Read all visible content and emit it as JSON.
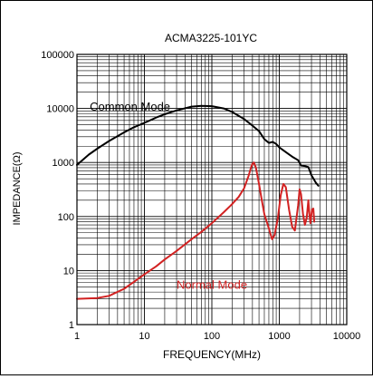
{
  "chart_data": {
    "type": "line",
    "title": "ACMA3225-101YC",
    "xlabel": "FREQUENCY(MHz)",
    "ylabel": "IMPEDANCE(Ω)",
    "x_scale": "log",
    "y_scale": "log",
    "xlim": [
      1,
      10000
    ],
    "ylim": [
      1,
      100000
    ],
    "grid": true,
    "x_ticks": [
      {
        "value": 1,
        "label": "1"
      },
      {
        "value": 10,
        "label": "10"
      },
      {
        "value": 100,
        "label": "100"
      },
      {
        "value": 1000,
        "label": "1000"
      },
      {
        "value": 10000,
        "label": "10000"
      }
    ],
    "y_ticks": [
      {
        "value": 1,
        "label": "1"
      },
      {
        "value": 10,
        "label": "10"
      },
      {
        "value": 100,
        "label": "100"
      },
      {
        "value": 1000,
        "label": "1000"
      },
      {
        "value": 10000,
        "label": "10000"
      },
      {
        "value": 100000,
        "label": "100000"
      }
    ],
    "series": [
      {
        "name": "Common Mode",
        "color": "#000000",
        "label_at": [
          1.55,
          11000
        ],
        "points": [
          [
            1,
            900
          ],
          [
            1.5,
            1400
          ],
          [
            2,
            1800
          ],
          [
            3,
            2500
          ],
          [
            5,
            3600
          ],
          [
            7,
            4500
          ],
          [
            10,
            5400
          ],
          [
            15,
            6800
          ],
          [
            20,
            7800
          ],
          [
            30,
            9200
          ],
          [
            50,
            10800
          ],
          [
            70,
            11200
          ],
          [
            100,
            11000
          ],
          [
            150,
            10000
          ],
          [
            200,
            8600
          ],
          [
            300,
            6400
          ],
          [
            400,
            4800
          ],
          [
            500,
            3800
          ],
          [
            600,
            2700
          ],
          [
            700,
            2300
          ],
          [
            800,
            2400
          ],
          [
            900,
            2200
          ],
          [
            1000,
            1900
          ],
          [
            1300,
            1500
          ],
          [
            1600,
            1250
          ],
          [
            1900,
            1100
          ],
          [
            2100,
            880
          ],
          [
            2400,
            860
          ],
          [
            2700,
            820
          ],
          [
            3000,
            580
          ],
          [
            3500,
            420
          ],
          [
            3800,
            370
          ]
        ]
      },
      {
        "name": "Normal Mode",
        "color": "#d22222",
        "label_at": [
          30,
          5.6
        ],
        "points": [
          [
            1,
            3
          ],
          [
            2,
            3.1
          ],
          [
            3,
            3.4
          ],
          [
            5,
            4.6
          ],
          [
            7,
            6.2
          ],
          [
            10,
            8.5
          ],
          [
            15,
            12
          ],
          [
            20,
            16
          ],
          [
            30,
            23
          ],
          [
            50,
            38
          ],
          [
            70,
            52
          ],
          [
            100,
            75
          ],
          [
            150,
            120
          ],
          [
            200,
            170
          ],
          [
            250,
            230
          ],
          [
            300,
            330
          ],
          [
            350,
            560
          ],
          [
            380,
            800
          ],
          [
            400,
            950
          ],
          [
            420,
            1000
          ],
          [
            450,
            800
          ],
          [
            500,
            400
          ],
          [
            550,
            200
          ],
          [
            600,
            110
          ],
          [
            700,
            60
          ],
          [
            780,
            38
          ],
          [
            850,
            45
          ],
          [
            950,
            90
          ],
          [
            1050,
            250
          ],
          [
            1150,
            400
          ],
          [
            1250,
            350
          ],
          [
            1400,
            130
          ],
          [
            1550,
            65
          ],
          [
            1700,
            55
          ],
          [
            1900,
            160
          ],
          [
            2000,
            320
          ],
          [
            2100,
            260
          ],
          [
            2250,
            110
          ],
          [
            2400,
            70
          ],
          [
            2550,
            95
          ],
          [
            2700,
            200
          ],
          [
            2800,
            110
          ],
          [
            2900,
            75
          ],
          [
            3050,
            135
          ],
          [
            3200,
            140
          ],
          [
            3300,
            80
          ]
        ]
      }
    ]
  }
}
